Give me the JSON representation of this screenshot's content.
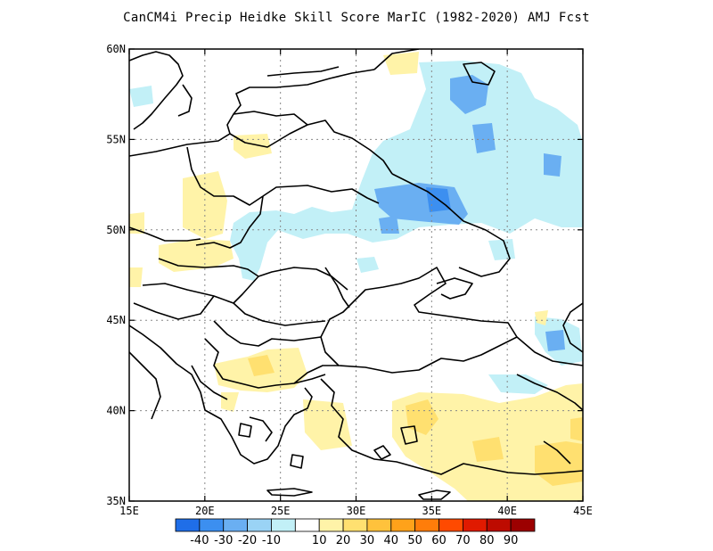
{
  "title": "CanCM4i Precip Heidke Skill Score MarIC (1982-2020) AMJ Fcst",
  "map": {
    "lon_range": [
      15,
      45
    ],
    "lat_range": [
      35,
      60
    ],
    "lon_ticks": [
      {
        "value": 15,
        "label": "15E"
      },
      {
        "value": 20,
        "label": "20E"
      },
      {
        "value": 25,
        "label": "25E"
      },
      {
        "value": 30,
        "label": "30E"
      },
      {
        "value": 35,
        "label": "35E"
      },
      {
        "value": 40,
        "label": "40E"
      },
      {
        "value": 45,
        "label": "45E"
      }
    ],
    "lat_ticks": [
      {
        "value": 35,
        "label": "35N"
      },
      {
        "value": 40,
        "label": "40N"
      },
      {
        "value": 45,
        "label": "45N"
      },
      {
        "value": 50,
        "label": "50N"
      },
      {
        "value": 55,
        "label": "55N"
      },
      {
        "value": 60,
        "label": "60N"
      }
    ],
    "grid": "dotted",
    "coast_color": "#000000"
  },
  "colorbar": {
    "colors": [
      "#1f6ee8",
      "#3c8ff0",
      "#6aaff2",
      "#9ad3f5",
      "#c2f0f7",
      "#ffffff",
      "#fff3a8",
      "#ffe070",
      "#ffc23c",
      "#ffa21a",
      "#ff7d0a",
      "#ff4a00",
      "#e01a00",
      "#bd0b00",
      "#9c0000"
    ],
    "labels": [
      "-40",
      "-30",
      "-20",
      "-10",
      "10",
      "20",
      "30",
      "40",
      "50",
      "60",
      "70",
      "80",
      "90"
    ]
  }
}
